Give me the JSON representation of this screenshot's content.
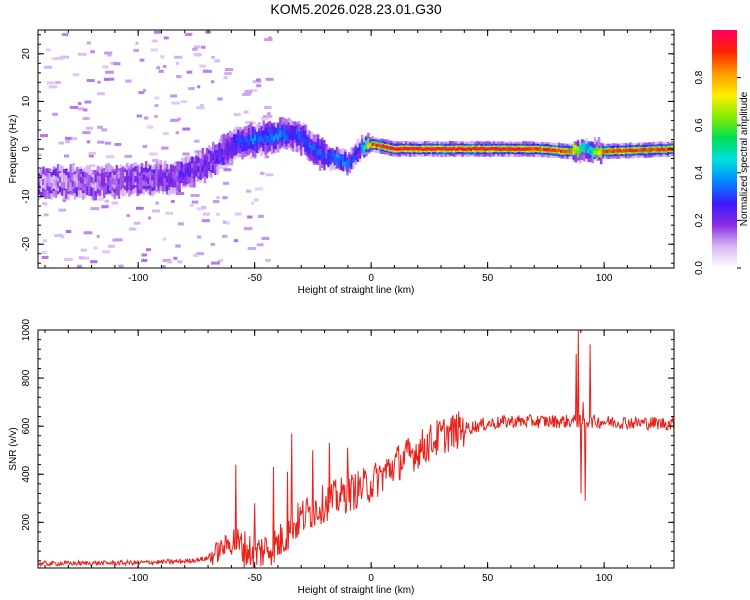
{
  "title": "KOM5.2026.028.23.01.G30",
  "colors": {
    "snr_line": "#e8221b",
    "axis": "#000000",
    "background": "#ffffff",
    "colormap": [
      "#ffffff",
      "#d8b8f4",
      "#8a2be2",
      "#3a1aff",
      "#0088ff",
      "#00e0e0",
      "#00dd55",
      "#88ee00",
      "#ffee00",
      "#ff9900",
      "#ff2200",
      "#ff0066"
    ]
  },
  "chart_data": [
    {
      "type": "heatmap",
      "title": "",
      "xlabel": "Height of straight line (km)",
      "ylabel": "Frequency (Hz)",
      "xlim": [
        -143,
        130
      ],
      "ylim": [
        -25,
        25
      ],
      "xticks": [
        -100,
        -50,
        0,
        50,
        100
      ],
      "yticks": [
        -20,
        -10,
        0,
        10,
        20
      ],
      "colorbar": {
        "label": "Normalized spectral amplitude",
        "range": [
          0,
          1
        ],
        "ticks": [
          0.0,
          0.2,
          0.4,
          0.6,
          0.8
        ]
      },
      "ridge": {
        "description": "dominant frequency vs height",
        "x": [
          -140,
          -120,
          -100,
          -85,
          -70,
          -60,
          -50,
          -40,
          -32,
          -25,
          -20,
          -15,
          -10,
          -5,
          0,
          10,
          30,
          50,
          70,
          85,
          92,
          100,
          130
        ],
        "y": [
          -7,
          -7,
          -6.5,
          -6,
          -3,
          1,
          2,
          3,
          3,
          0,
          -1.5,
          -2,
          -3,
          0,
          1,
          0,
          0,
          0,
          0,
          -0.5,
          0,
          -0.5,
          0
        ],
        "amplitude": [
          0.12,
          0.15,
          0.18,
          0.2,
          0.22,
          0.25,
          0.35,
          0.35,
          0.3,
          0.3,
          0.32,
          0.35,
          0.35,
          0.3,
          0.9,
          0.95,
          0.95,
          0.95,
          0.92,
          0.9,
          0.4,
          0.9,
          0.9
        ]
      }
    },
    {
      "type": "line",
      "title": "",
      "xlabel": "Height of straight line (km)",
      "ylabel": "SNR (v/v)",
      "xlim": [
        -143,
        130
      ],
      "ylim": [
        10,
        1000
      ],
      "xticks": [
        -100,
        -50,
        0,
        50,
        100
      ],
      "yticks": [
        200,
        400,
        600,
        800,
        1000
      ],
      "series": [
        {
          "name": "SNR",
          "trend_x": [
            -143,
            -100,
            -80,
            -70,
            -60,
            -50,
            -40,
            -30,
            -20,
            -10,
            0,
            10,
            20,
            30,
            40,
            50,
            60,
            80,
            88,
            95,
            110,
            130
          ],
          "trend_y": [
            28,
            32,
            38,
            50,
            120,
            70,
            110,
            220,
            280,
            320,
            360,
            440,
            500,
            560,
            590,
            610,
            620,
            620,
            620,
            620,
            615,
            610
          ],
          "spikes_x": [
            -58,
            -50,
            -42,
            -36,
            -34,
            -25,
            -18,
            -10,
            88,
            89,
            90,
            91,
            92,
            94
          ],
          "spikes_y": [
            440,
            280,
            430,
            410,
            570,
            500,
            530,
            510,
            900,
            1000,
            320,
            700,
            290,
            940
          ]
        }
      ]
    }
  ]
}
